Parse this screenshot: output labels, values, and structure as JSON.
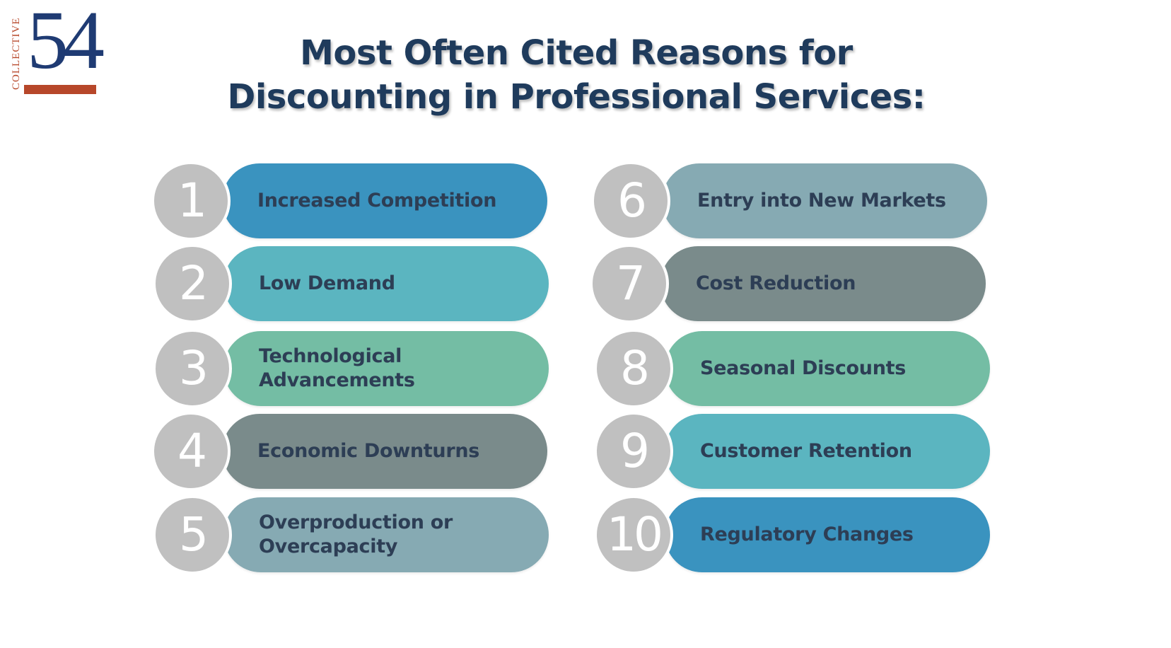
{
  "logo": {
    "vertical_text": "COLLECTIVE",
    "number": "54"
  },
  "title": {
    "line1": "Most Often Cited Reasons for",
    "line2": "Discounting in Professional Services:"
  },
  "colors": {
    "title": "#1f3b5c",
    "circle": "#c0c0c0",
    "logo_blue": "#1f3b73",
    "logo_accent": "#b7472a"
  },
  "items": [
    {
      "number": "1",
      "label": "Increased Competition",
      "color": "#3a93bf"
    },
    {
      "number": "2",
      "label": "Low Demand",
      "color": "#5bb5c0"
    },
    {
      "number": "3",
      "label": "Technological Advancements",
      "color": "#74bda4"
    },
    {
      "number": "4",
      "label": "Economic Downturns",
      "color": "#7a8b8b"
    },
    {
      "number": "5",
      "label": "Overproduction or Overcapacity",
      "color": "#86aab3"
    },
    {
      "number": "6",
      "label": "Entry into New Markets",
      "color": "#86aab3"
    },
    {
      "number": "7",
      "label": "Cost Reduction",
      "color": "#7a8b8b"
    },
    {
      "number": "8",
      "label": "Seasonal Discounts",
      "color": "#74bda4"
    },
    {
      "number": "9",
      "label": "Customer Retention",
      "color": "#5bb5c0"
    },
    {
      "number": "10",
      "label": "Regulatory Changes",
      "color": "#3a93bf"
    }
  ]
}
